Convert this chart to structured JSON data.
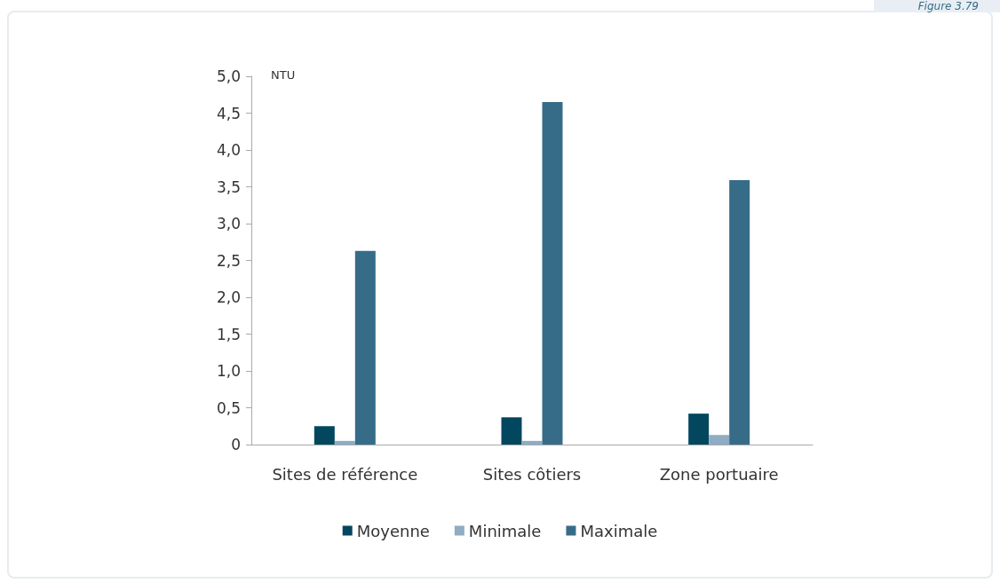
{
  "chart_data": {
    "type": "bar",
    "ylabel": "NTU",
    "annotations": [
      "Figure 3.79"
    ],
    "categories": [
      "Sites de référence",
      "Sites côtiers",
      "Zone portuaire"
    ],
    "series": [
      {
        "name": "Moyenne",
        "color": "#03475f",
        "values": [
          0.25,
          0.37,
          0.42
        ]
      },
      {
        "name": "Minimale",
        "color": "#8eacc2",
        "values": [
          0.05,
          0.05,
          0.13
        ]
      },
      {
        "name": "Maximale",
        "color": "#376c89",
        "values": [
          2.63,
          4.65,
          3.59
        ]
      }
    ],
    "ylim": [
      0,
      5
    ],
    "yticks": [
      0,
      {
        "value": 0.5,
        "label": "0,5"
      },
      {
        "value": 1,
        "label": "1,0"
      },
      {
        "value": 1.5,
        "label": "1,5"
      },
      {
        "value": 2,
        "label": "2,0"
      },
      {
        "value": 2.5,
        "label": "2,5"
      },
      {
        "value": 3,
        "label": "3,0"
      },
      {
        "value": 3.5,
        "label": "3,5"
      },
      {
        "value": 4,
        "label": "4,0"
      },
      {
        "value": 4.5,
        "label": "4,5"
      },
      {
        "value": 5,
        "label": "5,0"
      }
    ],
    "grid": false,
    "legend": "bottom"
  }
}
